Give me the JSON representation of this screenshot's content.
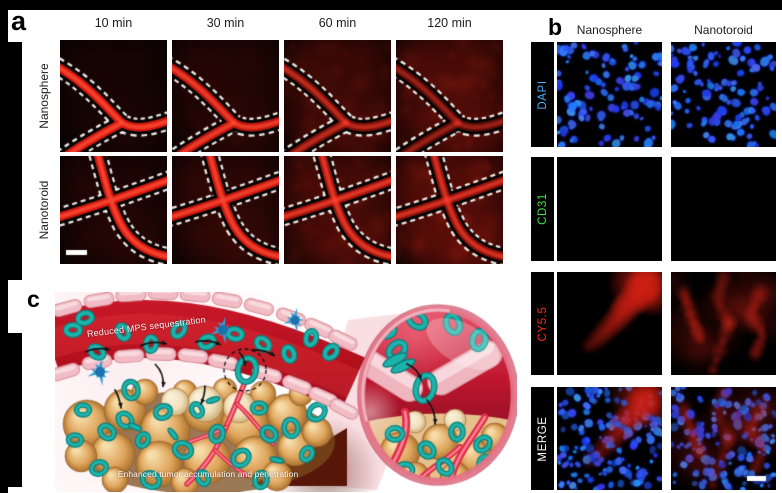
{
  "figure": {
    "background": "#ffffff",
    "frame_color": "#000000"
  },
  "panel_a": {
    "label": "a",
    "column_headers": [
      "10 min",
      "30 min",
      "60 min",
      "120 min"
    ],
    "row_labels": [
      "Nanosphere",
      "Nanotoroid"
    ],
    "vessel_color": "#d91c12",
    "outline_style": "white-dashed",
    "tiles": [
      {
        "row": "Nanosphere",
        "col": "10 min",
        "vessel": "branch",
        "vessel_intensity": 1.0,
        "haze_intensity": 0.12,
        "scale_bar": false
      },
      {
        "row": "Nanosphere",
        "col": "30 min",
        "vessel": "branch",
        "vessel_intensity": 0.9,
        "haze_intensity": 0.22,
        "scale_bar": false
      },
      {
        "row": "Nanosphere",
        "col": "60 min",
        "vessel": "branch",
        "vessel_intensity": 0.6,
        "haze_intensity": 0.42,
        "scale_bar": false
      },
      {
        "row": "Nanosphere",
        "col": "120 min",
        "vessel": "branch",
        "vessel_intensity": 0.45,
        "haze_intensity": 0.56,
        "scale_bar": false
      },
      {
        "row": "Nanotoroid",
        "col": "10 min",
        "vessel": "cross",
        "vessel_intensity": 1.0,
        "haze_intensity": 0.18,
        "scale_bar": true
      },
      {
        "row": "Nanotoroid",
        "col": "30 min",
        "vessel": "cross",
        "vessel_intensity": 0.95,
        "haze_intensity": 0.28,
        "scale_bar": false
      },
      {
        "row": "Nanotoroid",
        "col": "60 min",
        "vessel": "cross",
        "vessel_intensity": 0.8,
        "haze_intensity": 0.5,
        "scale_bar": false
      },
      {
        "row": "Nanotoroid",
        "col": "120 min",
        "vessel": "cross",
        "vessel_intensity": 0.72,
        "haze_intensity": 0.66,
        "scale_bar": false
      }
    ]
  },
  "panel_b": {
    "label": "b",
    "column_headers": [
      "Nanosphere",
      "Nanotoroid"
    ],
    "rows": [
      {
        "label": "DAPI",
        "label_color": "#49aef5"
      },
      {
        "label": "CD31",
        "label_color": "#3ce63c"
      },
      {
        "label": "CY5.5",
        "label_color": "#ff2a18"
      },
      {
        "label": "MERGE",
        "label_color": "#ffffff"
      }
    ]
  },
  "panel_c": {
    "label": "c",
    "captions": {
      "vessel": "Reduced MPS sequestration",
      "tumor": "Enhanced tumor accumulation and penetration"
    },
    "palette": {
      "toroid_teal": "#18b2aa",
      "macrophage_blue": "#35a0d8",
      "vessel_red": "#c4161f",
      "endothelium_pink": "#f4c3ca",
      "tumor_tan": "#dfa55c"
    }
  }
}
